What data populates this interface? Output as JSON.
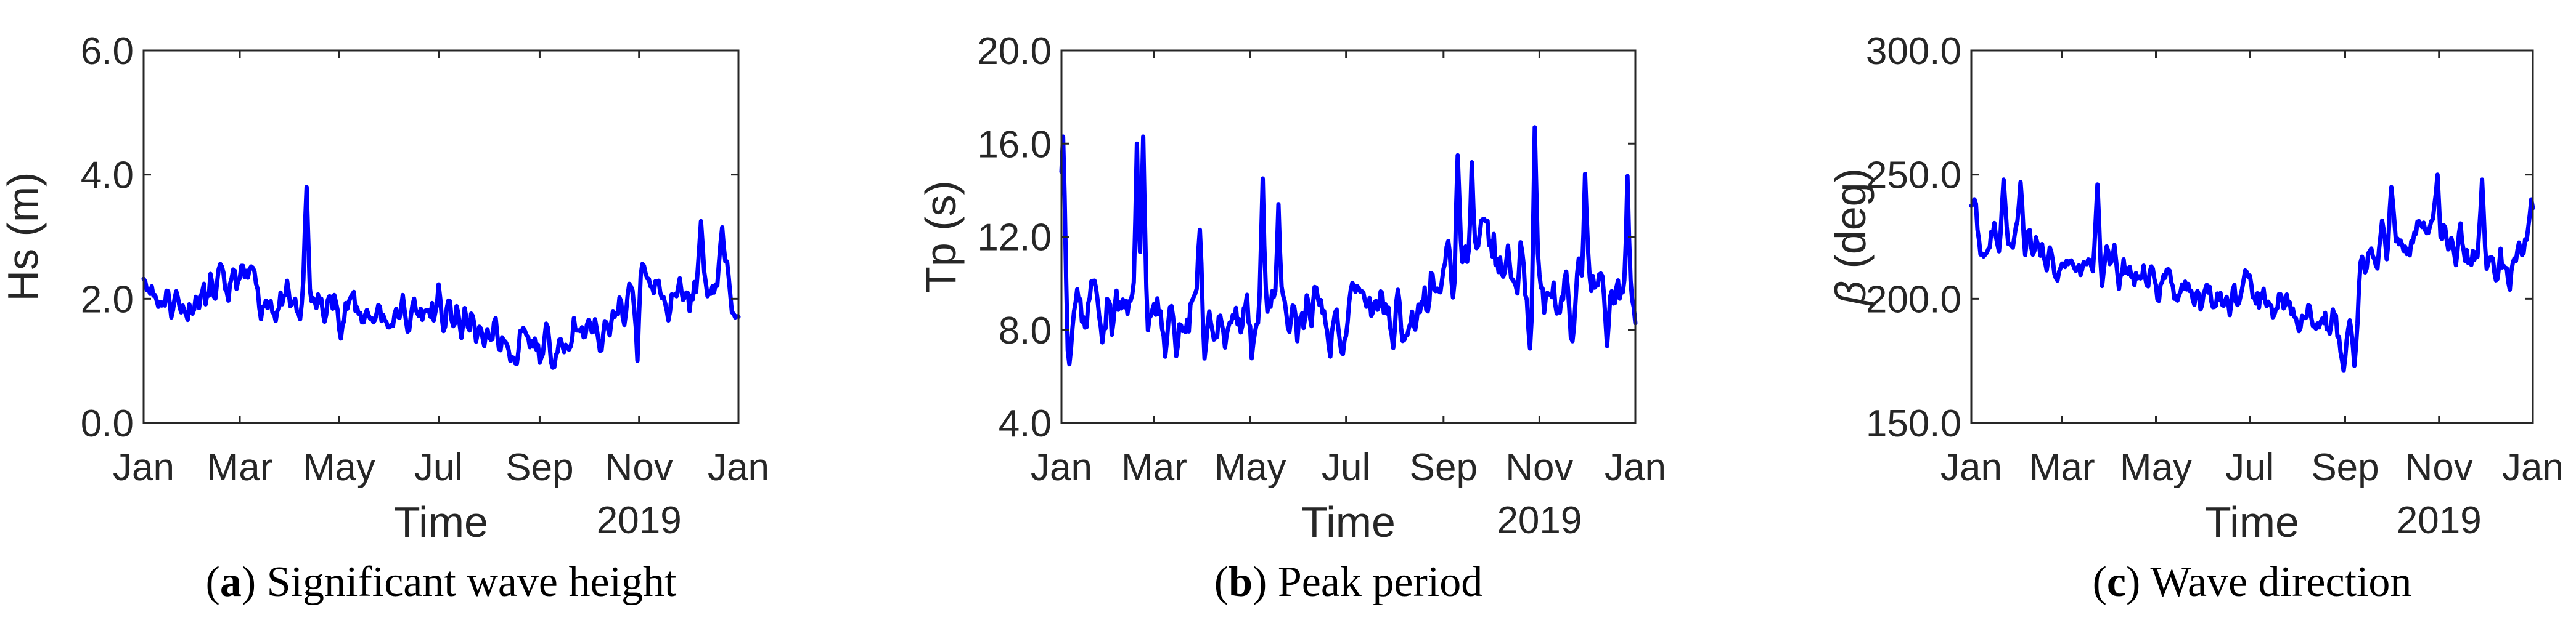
{
  "colors": {
    "series": "#0000ff",
    "axis": "#262626",
    "background": "#ffffff"
  },
  "chart_data": [
    {
      "type": "line",
      "caption_letter": "a",
      "caption_text": " Significant wave height",
      "xlabel": "Time",
      "ylabel": "Hs (m)",
      "year_label": "2019",
      "ylim": [
        0.0,
        6.0
      ],
      "yticks": [
        "0.0",
        "2.0",
        "4.0",
        "6.0"
      ],
      "xticks": [
        "Jan",
        "Mar",
        "May",
        "Jul",
        "Sep",
        "Nov",
        "Jan"
      ],
      "xrange_days": [
        0,
        365
      ],
      "grid": false,
      "series": [
        {
          "x": [],
          "y": []
        }
      ]
    },
    {
      "type": "line",
      "caption_letter": "b",
      "caption_text": " Peak period",
      "xlabel": "Time",
      "ylabel": "Tp (s)",
      "year_label": "2019",
      "ylim": [
        4.0,
        20.0
      ],
      "yticks": [
        "4.0",
        "8.0",
        "12.0",
        "16.0",
        "20.0"
      ],
      "xticks": [
        "Jan",
        "Mar",
        "May",
        "Jul",
        "Sep",
        "Nov",
        "Jan"
      ],
      "xrange_days": [
        0,
        365
      ],
      "grid": false,
      "series": [
        {
          "x": [],
          "y": []
        }
      ]
    },
    {
      "type": "line",
      "caption_letter": "c",
      "caption_text": " Wave direction",
      "xlabel": "Time",
      "ylabel_symbol": "β",
      "ylabel": " (deg)",
      "year_label": "2019",
      "ylim": [
        150.0,
        300.0
      ],
      "yticks": [
        "150.0",
        "200.0",
        "250.0",
        "300.0"
      ],
      "xticks": [
        "Jan",
        "Mar",
        "May",
        "Jul",
        "Sep",
        "Nov",
        "Jan"
      ],
      "xrange_days": [
        0,
        365
      ],
      "grid": false,
      "series": [
        {
          "x": [],
          "y": []
        }
      ]
    }
  ]
}
